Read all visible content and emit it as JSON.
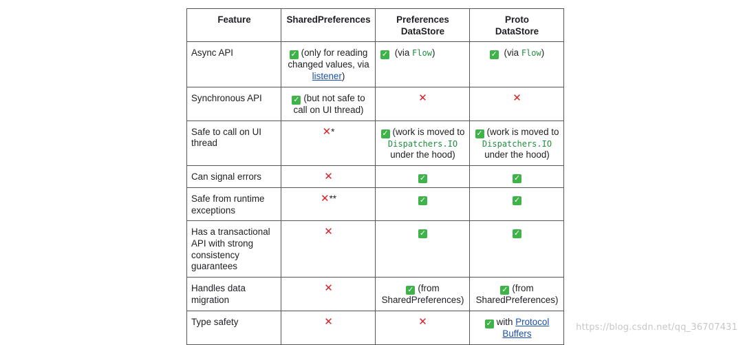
{
  "headers": [
    "Feature",
    "SharedPreferences",
    "Preferences DataStore",
    "Proto DataStore"
  ],
  "header_lines": {
    "c3_l1": "Preferences",
    "c3_l2": "DataStore",
    "c4_l1": "Proto",
    "c4_l2": "DataStore"
  },
  "rows": [
    {
      "feature": "Async API",
      "sp_text_pre": "(only for reading changed values, via ",
      "sp_link": "listener",
      "sp_text_post": ")",
      "pds_pre": "(via ",
      "pds_code": "Flow",
      "pds_post": ")",
      "proto_pre": "(via ",
      "proto_code": "Flow",
      "proto_post": ")"
    },
    {
      "feature": "Synchronous API",
      "sp_text": "(but not safe to call on UI thread)",
      "pds_mark": "✕",
      "proto_mark": "✕"
    },
    {
      "feature": "Safe to call on UI thread",
      "sp_mark": "✕",
      "sp_suffix": "*",
      "pds_pre": "(work is moved to ",
      "pds_code": "Dispatchers.IO",
      "pds_post": " under the hood)",
      "proto_pre": "(work is moved to ",
      "proto_code": "Dispatchers.IO",
      "proto_post": " under the hood)"
    },
    {
      "feature": "Can signal errors",
      "sp_mark": "✕"
    },
    {
      "feature": "Safe from runtime exceptions",
      "sp_mark": "✕",
      "sp_suffix": "**"
    },
    {
      "feature": "Has a transactional API with strong consistency guarantees",
      "sp_mark": "✕"
    },
    {
      "feature": "Handles data migration",
      "sp_mark": "✕",
      "pds_text": "(from SharedPreferences)",
      "proto_text": "(from SharedPreferences)"
    },
    {
      "feature": "Type safety",
      "sp_mark": "✕",
      "pds_mark": "✕",
      "proto_pre": "with ",
      "proto_link": "Protocol Buffers"
    }
  ],
  "check_glyph": "✓",
  "colors": {
    "check": "#3fb24a",
    "cross": "#d8212a",
    "code": "#1e8e3e",
    "link": "#1a4fa8"
  },
  "watermark": "https://blog.csdn.net/qq_36707431"
}
